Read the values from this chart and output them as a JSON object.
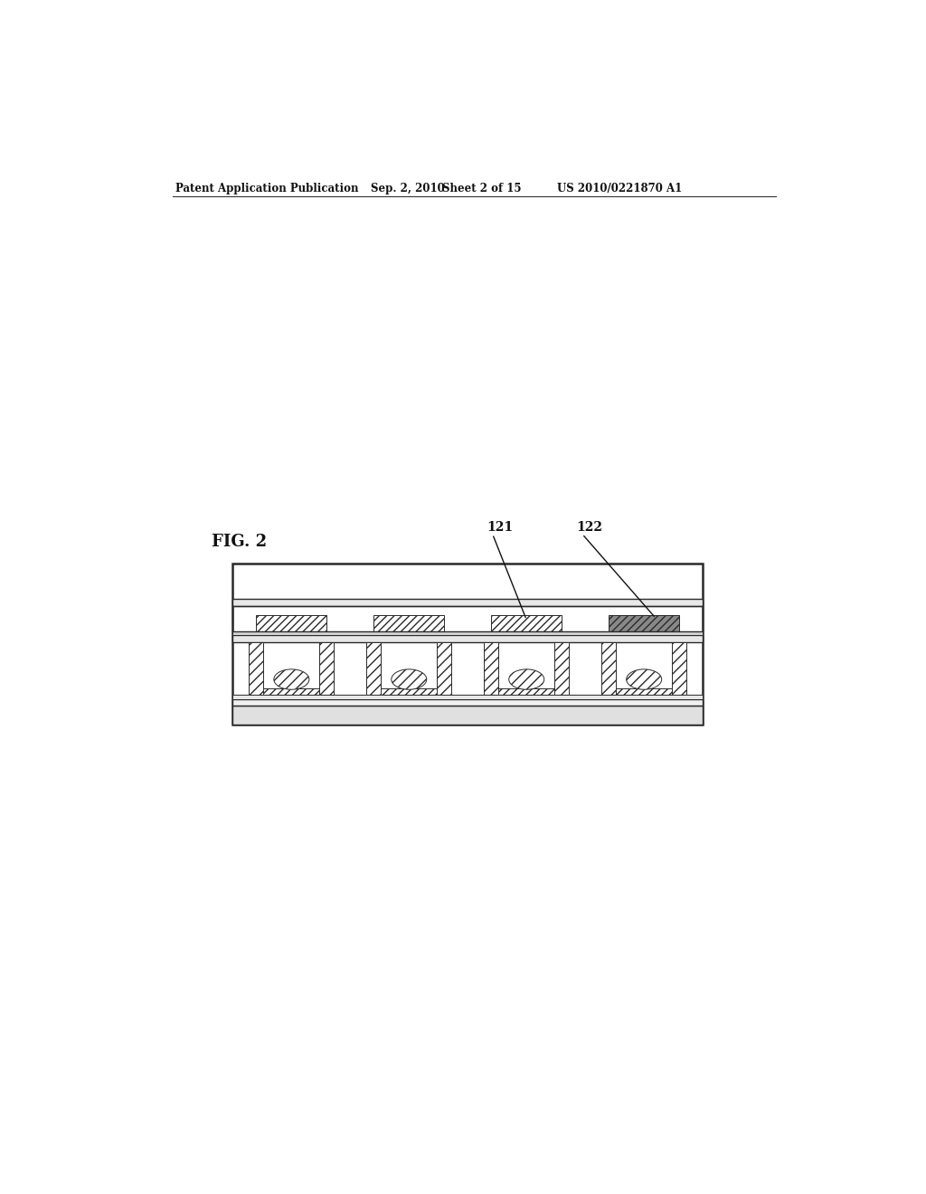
{
  "bg_color": "#ffffff",
  "header_text": "Patent Application Publication",
  "header_date": "Sep. 2, 2010",
  "header_sheet": "Sheet 2 of 15",
  "header_patent": "US 2010/0221870 A1",
  "fig_label": "FIG. 2",
  "label_121": "121",
  "label_122": "122",
  "diagram": {
    "ox": 0.163,
    "oy": 0.368,
    "ow": 0.655,
    "oh": 0.175
  }
}
